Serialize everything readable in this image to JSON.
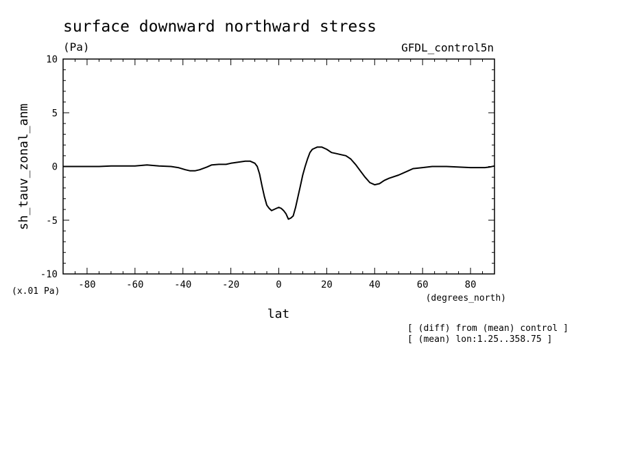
{
  "chart_data": {
    "type": "line",
    "title": "surface downward northward stress",
    "units": "(Pa)",
    "dataset_label": "GFDL_control5n",
    "ylabel": "sh_tauv_zonal_anm",
    "ylabel_scale": "(x.01 Pa)",
    "xlabel": "lat",
    "xunits": "(degrees_north)",
    "xlim": [
      -90,
      90
    ],
    "ylim": [
      -10,
      10
    ],
    "x_ticks": [
      -80,
      -60,
      -40,
      -20,
      0,
      20,
      40,
      60,
      80
    ],
    "x_tick_labels": [
      "-80",
      "-60",
      "-40",
      "-20",
      "0",
      "20",
      "40",
      "60",
      "80"
    ],
    "y_ticks": [
      -10,
      -5,
      0,
      5,
      10
    ],
    "y_tick_labels": [
      "-10",
      "-5",
      "0",
      "5",
      "10"
    ],
    "grid": false,
    "notes": [
      "[ (diff) from (mean) control ]",
      "[ (mean) lon:1.25..358.75 ]"
    ],
    "series": [
      {
        "color": "#000000",
        "x": [
          -90,
          -80,
          -75,
          -70,
          -65,
          -60,
          -55,
          -50,
          -45,
          -42,
          -39,
          -37,
          -35,
          -33,
          -30,
          -28,
          -25,
          -22,
          -20,
          -17,
          -14,
          -12,
          -10,
          -9,
          -8,
          -7,
          -6,
          -5,
          -4,
          -3,
          -2,
          -1,
          0,
          1,
          2,
          3,
          4,
          5,
          6,
          7,
          8,
          9,
          10,
          11,
          12,
          13,
          14,
          15,
          16,
          18,
          20,
          22,
          24,
          26,
          28,
          30,
          32,
          34,
          36,
          38,
          40,
          42,
          44,
          46,
          50,
          54,
          56,
          60,
          64,
          70,
          80,
          86,
          88,
          90
        ],
        "y": [
          0.0,
          0.0,
          0.0,
          0.05,
          0.05,
          0.05,
          0.15,
          0.05,
          0.0,
          -0.1,
          -0.3,
          -0.4,
          -0.4,
          -0.3,
          -0.05,
          0.15,
          0.2,
          0.2,
          0.3,
          0.4,
          0.5,
          0.5,
          0.3,
          0.0,
          -0.7,
          -1.8,
          -2.8,
          -3.6,
          -3.9,
          -4.1,
          -4.0,
          -3.9,
          -3.8,
          -3.9,
          -4.1,
          -4.4,
          -4.9,
          -4.8,
          -4.6,
          -3.8,
          -2.8,
          -1.8,
          -0.8,
          0.0,
          0.7,
          1.3,
          1.6,
          1.7,
          1.8,
          1.8,
          1.6,
          1.3,
          1.2,
          1.1,
          1.0,
          0.7,
          0.2,
          -0.4,
          -1.0,
          -1.5,
          -1.7,
          -1.6,
          -1.3,
          -1.1,
          -0.8,
          -0.4,
          -0.2,
          -0.1,
          0.0,
          0.0,
          -0.1,
          -0.1,
          -0.05,
          0.05
        ]
      }
    ]
  }
}
